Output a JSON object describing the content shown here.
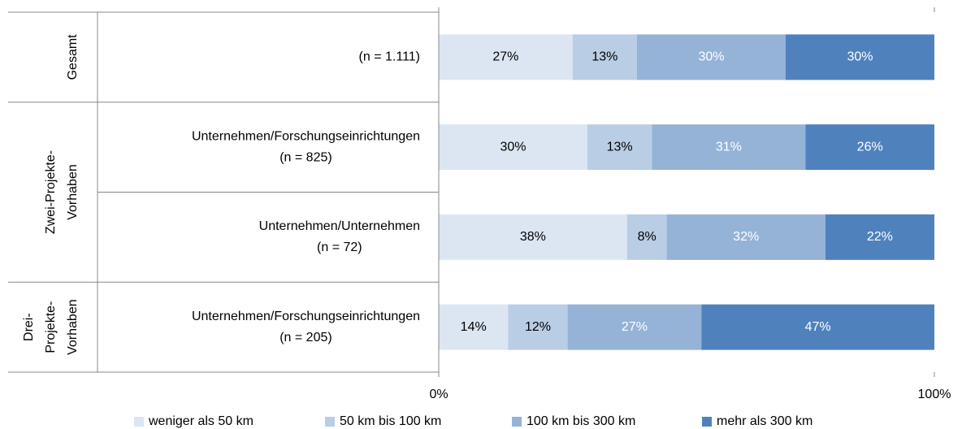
{
  "chart_data": {
    "type": "stacked-bar-horizontal",
    "groups": [
      {
        "label": [
          "Gesamt"
        ],
        "rows": 1
      },
      {
        "label": [
          "Zwei-Projekte-",
          "Vorhaben"
        ],
        "rows": 2
      },
      {
        "label": [
          "Drei-",
          "Projekte-",
          "Vorhaben"
        ],
        "rows": 1
      }
    ],
    "categories": [
      [
        "(n = 1.111)"
      ],
      [
        "Unternehmen/Forschungseinrichtungen",
        "(n = 825)"
      ],
      [
        "Unternehmen/Unternehmen",
        "(n = 72)"
      ],
      [
        "Unternehmen/Forschungseinrichtungen",
        "(n = 205)"
      ]
    ],
    "series": [
      {
        "name": "weniger als 50 km",
        "color": "#dce6f2",
        "label_color": "#000000",
        "values": [
          27,
          30,
          38,
          14
        ],
        "value_labels": [
          "27%",
          "30%",
          "38%",
          "14%"
        ]
      },
      {
        "name": "50 km bis 100 km",
        "color": "#b9cde5",
        "label_color": "#000000",
        "values": [
          13,
          13,
          8,
          12
        ],
        "value_labels": [
          "13%",
          "13%",
          "8%",
          "12%"
        ]
      },
      {
        "name": "100 km bis 300 km",
        "color": "#95b3d7",
        "label_color": "#ffffff",
        "values": [
          30,
          31,
          32,
          27
        ],
        "value_labels": [
          "30%",
          "31%",
          "32%",
          "27%"
        ]
      },
      {
        "name": "mehr als 300 km",
        "color": "#4f81bd",
        "label_color": "#ffffff",
        "values": [
          30,
          26,
          22,
          47
        ],
        "value_labels": [
          "30%",
          "26%",
          "22%",
          "47%"
        ]
      }
    ],
    "xlim": [
      0,
      100
    ],
    "xticks": [
      {
        "value": 0,
        "label": "0%"
      },
      {
        "value": 100,
        "label": "100%"
      }
    ],
    "legend": "bottom"
  }
}
